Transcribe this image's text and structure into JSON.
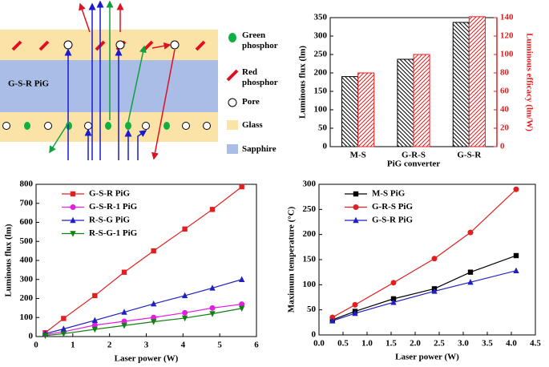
{
  "schematic": {
    "label": "G-S-R PiG",
    "legend": [
      "Green phosphor",
      "Red phosphor",
      "Pore",
      "Glass",
      "Sapphire"
    ]
  },
  "chart_data": [
    {
      "type": "bar",
      "categories": [
        "M-S",
        "G-R-S",
        "G-S-R"
      ],
      "xlabel": "PiG converter",
      "ylabel": "Luminous flux (lm)",
      "y2label": "Luminous efficacy (lm/W)",
      "ylim": [
        0,
        350
      ],
      "yticks": [
        0,
        50,
        100,
        150,
        200,
        250,
        300,
        350
      ],
      "y2lim": [
        0,
        140
      ],
      "y2ticks": [
        0,
        20,
        40,
        60,
        80,
        100,
        120,
        140
      ],
      "y2_color": "#e02020",
      "series": [
        {
          "color": "#000000",
          "hatch": "back",
          "values": [
            190,
            237,
            337
          ]
        },
        {
          "color": "#e02020",
          "hatch": "forward",
          "axis": "y2",
          "values": [
            80,
            100,
            141
          ]
        }
      ]
    },
    {
      "type": "line",
      "xlabel": "Laser power (W)",
      "ylabel": "Luminous flux (lm)",
      "xlim": [
        0,
        6
      ],
      "xticks": [
        0,
        1,
        2,
        3,
        4,
        5,
        6
      ],
      "ylim": [
        0,
        800
      ],
      "yticks": [
        0,
        100,
        200,
        300,
        400,
        500,
        600,
        700,
        800
      ],
      "legend": "upper left",
      "x": [
        0.25,
        0.75,
        1.6,
        2.4,
        3.2,
        4.05,
        4.8,
        5.6
      ],
      "series": [
        {
          "name": "G-S-R PiG",
          "color": "#e02020",
          "marker": "square",
          "values": [
            20,
            95,
            215,
            338,
            450,
            565,
            668,
            787
          ]
        },
        {
          "name": "G-S-R-1 PiG",
          "color": "#e020e0",
          "marker": "circle",
          "values": [
            10,
            25,
            60,
            80,
            100,
            125,
            150,
            170
          ]
        },
        {
          "name": "R-S-G PiG",
          "color": "#2020c0",
          "marker": "triangle",
          "values": [
            15,
            40,
            85,
            128,
            172,
            215,
            255,
            300
          ]
        },
        {
          "name": "R-S-G-1 PiG",
          "color": "#108010",
          "marker": "triangle-down",
          "values": [
            5,
            15,
            38,
            58,
            78,
            97,
            120,
            148
          ]
        }
      ]
    },
    {
      "type": "line",
      "xlabel": "Laser power (W)",
      "ylabel": "Maximum temperature (°C)",
      "xlim": [
        0,
        4.5
      ],
      "xticks": [
        {
          "value": 0,
          "label": "0.0"
        },
        {
          "value": 0.5,
          "label": "0.5"
        },
        {
          "value": 1,
          "label": "1.0"
        },
        {
          "value": 1.5,
          "label": "1.5"
        },
        {
          "value": 2,
          "label": "2.0"
        },
        {
          "value": 2.5,
          "label": "2.5"
        },
        {
          "value": 3,
          "label": "3.0"
        },
        {
          "value": 3.5,
          "label": "3.5"
        },
        {
          "value": 4,
          "label": "4.0"
        },
        {
          "value": 4.5,
          "label": "4.5"
        }
      ],
      "ylim": [
        0,
        300
      ],
      "yticks": [
        0,
        50,
        100,
        150,
        200,
        250,
        300
      ],
      "legend": "upper left",
      "x": [
        0.28,
        0.75,
        1.55,
        2.4,
        3.15,
        4.1
      ],
      "series": [
        {
          "name": "M-S PiG",
          "color": "#000000",
          "marker": "square",
          "values": [
            30,
            47,
            72,
            92,
            125,
            158
          ]
        },
        {
          "name": "G-R-S PiG",
          "color": "#e02020",
          "marker": "circle",
          "values": [
            35,
            60,
            104,
            152,
            204,
            290
          ]
        },
        {
          "name": "G-S-R PiG",
          "color": "#2020c0",
          "marker": "triangle",
          "values": [
            28,
            43,
            65,
            87,
            105,
            128
          ]
        }
      ]
    }
  ]
}
